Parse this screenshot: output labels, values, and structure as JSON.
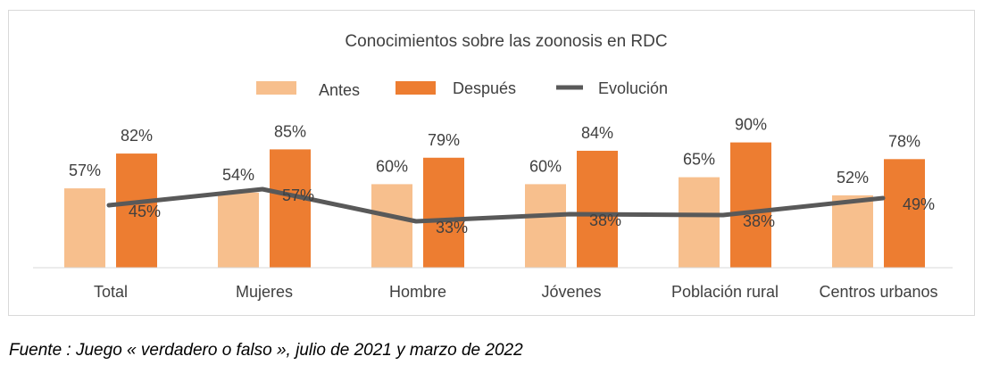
{
  "chart_data": {
    "type": "bar",
    "title": "Conocimientos sobre las zoonosis en RDC",
    "categories": [
      "Total",
      "Mujeres",
      "Hombre",
      "Jóvenes",
      "Población rural",
      "Centros urbanos"
    ],
    "series": [
      {
        "name": "Antes",
        "type": "bar",
        "color": "#f7bf8d",
        "values": [
          57,
          54,
          60,
          60,
          65,
          52
        ],
        "labels": [
          "57%",
          "54%",
          "60%",
          "60%",
          "65%",
          "52%"
        ]
      },
      {
        "name": "Después",
        "type": "bar",
        "color": "#ed7d31",
        "values": [
          82,
          85,
          79,
          84,
          90,
          78
        ],
        "labels": [
          "82%",
          "85%",
          "79%",
          "84%",
          "90%",
          "78%"
        ]
      },
      {
        "name": "Evolución",
        "type": "line",
        "color": "#595959",
        "values": [
          45,
          57,
          33,
          38,
          38,
          49
        ],
        "labels": [
          "45%",
          "57%",
          "33%",
          "38%",
          "38%",
          "49%"
        ]
      }
    ],
    "legend_position": "top",
    "grid": false,
    "xlabel": "",
    "ylabel": ""
  },
  "source_note": "Fuente : Juego « verdadero o falso », julio de 2021 y marzo de 2022"
}
